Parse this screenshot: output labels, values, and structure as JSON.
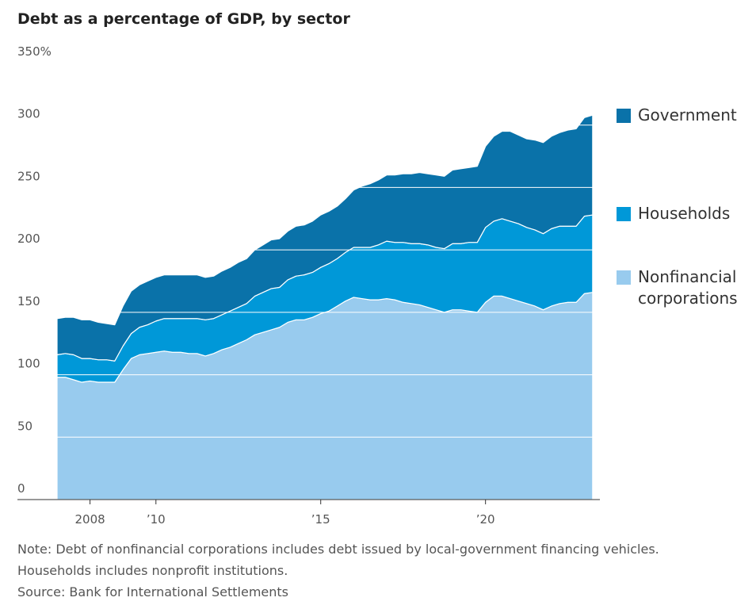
{
  "chart_data": {
    "type": "stacked-area",
    "title": "Debt as a percentage of GDP, by sector",
    "x": [
      2007,
      2007.25,
      2007.5,
      2007.75,
      2008,
      2008.25,
      2008.5,
      2008.75,
      2009,
      2009.25,
      2009.5,
      2009.75,
      2010,
      2010.25,
      2010.5,
      2010.75,
      2011,
      2011.25,
      2011.5,
      2011.75,
      2012,
      2012.25,
      2012.5,
      2012.75,
      2013,
      2013.25,
      2013.5,
      2013.75,
      2014,
      2014.25,
      2014.5,
      2014.75,
      2015,
      2015.25,
      2015.5,
      2015.75,
      2016,
      2016.25,
      2016.5,
      2016.75,
      2017,
      2017.25,
      2017.5,
      2017.75,
      2018,
      2018.25,
      2018.5,
      2018.75,
      2019,
      2019.25,
      2019.5,
      2019.75,
      2020,
      2020.25,
      2020.5,
      2020.75,
      2021,
      2021.25,
      2021.5,
      2021.75,
      2022,
      2022.25,
      2022.5,
      2022.75,
      2023,
      2023.25
    ],
    "series": [
      {
        "name": "Nonfinancial corporations",
        "color": "#98cbee",
        "values": [
          98,
          98,
          96,
          94,
          95,
          94,
          94,
          94,
          104,
          113,
          116,
          117,
          118,
          119,
          118,
          118,
          117,
          117,
          115,
          117,
          120,
          122,
          125,
          128,
          132,
          134,
          136,
          138,
          142,
          144,
          144,
          146,
          149,
          151,
          155,
          159,
          162,
          161,
          160,
          160,
          161,
          160,
          158,
          157,
          156,
          154,
          152,
          150,
          152,
          152,
          151,
          150,
          158,
          163,
          163,
          161,
          159,
          157,
          155,
          152,
          155,
          157,
          158,
          158,
          165,
          166
        ]
      },
      {
        "name": "Households",
        "color": "#0098d8",
        "values": [
          18,
          19,
          20,
          19,
          18,
          18,
          18,
          17,
          19,
          20,
          22,
          23,
          25,
          26,
          27,
          27,
          28,
          28,
          29,
          28,
          28,
          29,
          29,
          29,
          31,
          32,
          33,
          32,
          34,
          35,
          36,
          36,
          37,
          38,
          38,
          39,
          40,
          41,
          42,
          44,
          46,
          46,
          48,
          48,
          49,
          50,
          50,
          51,
          53,
          53,
          55,
          56,
          60,
          60,
          62,
          62,
          62,
          61,
          61,
          61,
          62,
          62,
          61,
          61,
          62,
          62
        ]
      },
      {
        "name": "Government",
        "color": "#0a72a9",
        "values": [
          29,
          29,
          30,
          31,
          31,
          30,
          29,
          29,
          32,
          34,
          34,
          35,
          35,
          35,
          35,
          35,
          35,
          35,
          34,
          34,
          35,
          35,
          36,
          36,
          37,
          38,
          39,
          39,
          39,
          40,
          40,
          41,
          42,
          42,
          42,
          43,
          46,
          49,
          51,
          52,
          53,
          54,
          55,
          56,
          57,
          57,
          58,
          58,
          59,
          60,
          60,
          61,
          65,
          68,
          70,
          72,
          71,
          71,
          72,
          73,
          74,
          75,
          77,
          78,
          79,
          80
        ]
      }
    ],
    "xlim": [
      2007,
      2023.35
    ],
    "xticks": [
      {
        "value": 2008,
        "label": "2008"
      },
      {
        "value": 2010,
        "label": "’10"
      },
      {
        "value": 2015,
        "label": "’15"
      },
      {
        "value": 2020,
        "label": "’20"
      }
    ],
    "ylim": [
      0,
      350
    ],
    "yticks": [
      0,
      50,
      100,
      150,
      200,
      250,
      300,
      {
        "value": 350,
        "label": "350%"
      }
    ],
    "grid": true,
    "legend": "right",
    "notes": [
      "Note: Debt of nonfinancial corporations includes debt issued by local-government financing vehicles.",
      "Households includes nonprofit institutions.",
      "Source: Bank for International Settlements"
    ]
  }
}
